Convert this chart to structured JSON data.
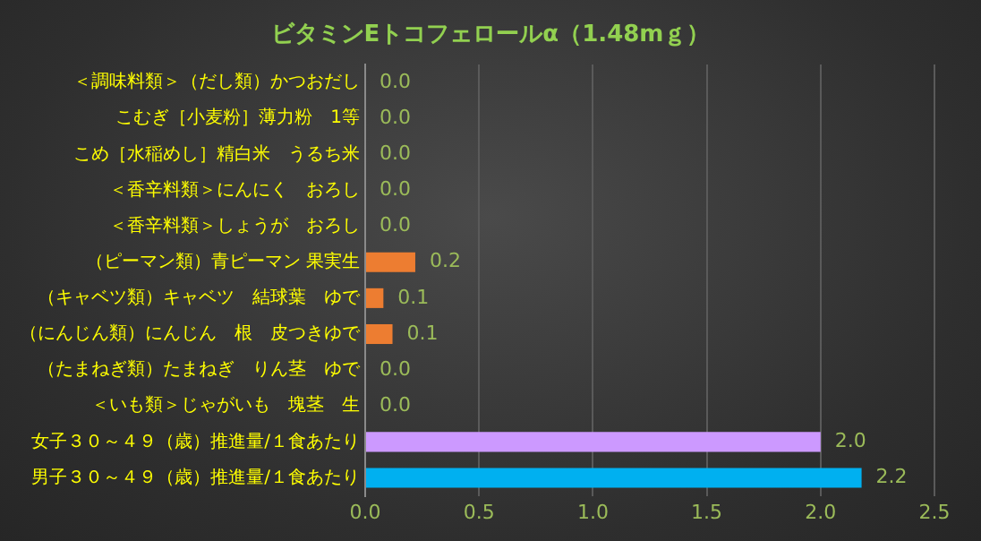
{
  "chart_data": {
    "type": "bar",
    "orientation": "horizontal",
    "title": "ビタミンEトコフェロールα（1.48mｇ）",
    "categories": [
      "＜調味料類＞（だし類）かつおだし",
      "こむぎ［小麦粉］薄力粉　1等",
      "こめ［水稲めし］精白米　うるち米",
      "＜香辛料類＞にんにく　おろし",
      "＜香辛料類＞しょうが　おろし",
      "（ピーマン類）青ピーマン 果実生",
      "（キャベツ類）キャベツ　結球葉　ゆで",
      "（にんじん類）にんじん　根　皮つきゆで",
      "（たまねぎ類）たまねぎ　りん茎　ゆで",
      "＜いも類＞じゃがいも　塊茎　生",
      "女子３０～４９（歳）推進量/１食あたり",
      "男子３０～４９（歳）推進量/１食あたり"
    ],
    "values": [
      0,
      0,
      0,
      0,
      0,
      0.22,
      0.08,
      0.12,
      0,
      0,
      2.0,
      2.18
    ],
    "value_labels": [
      "0.0",
      "0.0",
      "0.0",
      "0.0",
      "0.0",
      "0.2",
      "0.1",
      "0.1",
      "0.0",
      "0.0",
      "2.0",
      "2.2"
    ],
    "colors": [
      "#ed7d31",
      "#ed7d31",
      "#ed7d31",
      "#ed7d31",
      "#ed7d31",
      "#ed7d31",
      "#ed7d31",
      "#ed7d31",
      "#ed7d31",
      "#ed7d31",
      "#cc99ff",
      "#00b0f0"
    ],
    "xlim": [
      0,
      2.5
    ],
    "xticks": [
      {
        "value": 0,
        "label": "0.0"
      },
      {
        "value": 0.5,
        "label": "0.5"
      },
      {
        "value": 1,
        "label": "1.0"
      },
      {
        "value": 1.5,
        "label": "1.5"
      },
      {
        "value": 2,
        "label": "2.0"
      },
      {
        "value": 2.5,
        "label": "2.5"
      }
    ],
    "grid": "x",
    "legend": false
  }
}
